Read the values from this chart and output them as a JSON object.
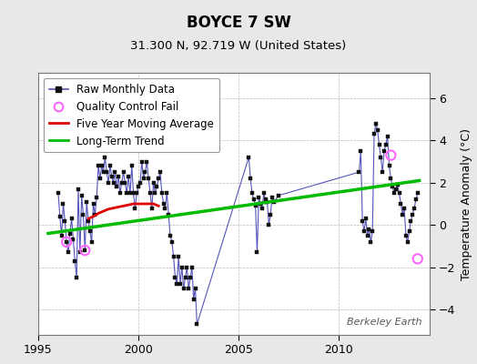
{
  "title": "BOYCE 7 SW",
  "subtitle": "31.300 N, 92.719 W (United States)",
  "ylabel": "Temperature Anomaly (°C)",
  "watermark": "Berkeley Earth",
  "xlim": [
    1995.5,
    2014.5
  ],
  "ylim": [
    -5.2,
    7.2
  ],
  "yticks": [
    -4,
    -2,
    0,
    2,
    4,
    6
  ],
  "xticks": [
    1995,
    2000,
    2005,
    2010
  ],
  "bg_color": "#e8e8e8",
  "plot_bg_color": "#ffffff",
  "raw_line_color": "#5555bb",
  "raw_marker_color": "#111111",
  "qc_fail_color": "#ff66ff",
  "moving_avg_color": "#dd0000",
  "trend_color": "#00bb00",
  "raw_monthly": [
    [
      1996.0,
      1.5
    ],
    [
      1996.083,
      0.4
    ],
    [
      1996.167,
      -0.5
    ],
    [
      1996.25,
      1.0
    ],
    [
      1996.333,
      0.2
    ],
    [
      1996.417,
      -0.8
    ],
    [
      1996.5,
      -1.3
    ],
    [
      1996.583,
      -0.4
    ],
    [
      1996.667,
      0.3
    ],
    [
      1996.75,
      -0.7
    ],
    [
      1996.833,
      -1.7
    ],
    [
      1996.917,
      -2.5
    ],
    [
      1997.0,
      1.7
    ],
    [
      1997.083,
      -1.3
    ],
    [
      1997.167,
      1.4
    ],
    [
      1997.25,
      0.5
    ],
    [
      1997.333,
      -1.2
    ],
    [
      1997.417,
      1.1
    ],
    [
      1997.5,
      0.2
    ],
    [
      1997.583,
      -0.3
    ],
    [
      1997.667,
      -0.8
    ],
    [
      1997.75,
      1.0
    ],
    [
      1997.833,
      0.5
    ],
    [
      1997.917,
      1.3
    ],
    [
      1998.0,
      2.8
    ],
    [
      1998.083,
      2.2
    ],
    [
      1998.167,
      2.8
    ],
    [
      1998.25,
      2.5
    ],
    [
      1998.333,
      3.2
    ],
    [
      1998.417,
      2.5
    ],
    [
      1998.5,
      2.0
    ],
    [
      1998.583,
      2.8
    ],
    [
      1998.667,
      2.3
    ],
    [
      1998.75,
      2.0
    ],
    [
      1998.833,
      2.5
    ],
    [
      1998.917,
      1.8
    ],
    [
      1999.0,
      2.3
    ],
    [
      1999.083,
      1.5
    ],
    [
      1999.167,
      2.0
    ],
    [
      1999.25,
      2.5
    ],
    [
      1999.333,
      2.0
    ],
    [
      1999.417,
      1.5
    ],
    [
      1999.5,
      2.3
    ],
    [
      1999.583,
      1.5
    ],
    [
      1999.667,
      2.8
    ],
    [
      1999.75,
      1.5
    ],
    [
      1999.833,
      0.8
    ],
    [
      1999.917,
      1.5
    ],
    [
      2000.0,
      1.8
    ],
    [
      2000.083,
      2.0
    ],
    [
      2000.167,
      3.0
    ],
    [
      2000.25,
      2.2
    ],
    [
      2000.333,
      2.5
    ],
    [
      2000.417,
      3.0
    ],
    [
      2000.5,
      2.2
    ],
    [
      2000.583,
      1.5
    ],
    [
      2000.667,
      0.8
    ],
    [
      2000.75,
      2.0
    ],
    [
      2000.833,
      1.5
    ],
    [
      2000.917,
      1.8
    ],
    [
      2001.0,
      2.2
    ],
    [
      2001.083,
      2.5
    ],
    [
      2001.167,
      1.5
    ],
    [
      2001.25,
      1.0
    ],
    [
      2001.333,
      0.8
    ],
    [
      2001.417,
      1.5
    ],
    [
      2001.5,
      0.5
    ],
    [
      2001.583,
      -0.5
    ],
    [
      2001.667,
      -0.8
    ],
    [
      2001.75,
      -1.5
    ],
    [
      2001.833,
      -2.5
    ],
    [
      2001.917,
      -2.8
    ],
    [
      2002.0,
      -1.5
    ],
    [
      2002.083,
      -2.8
    ],
    [
      2002.167,
      -2.0
    ],
    [
      2002.25,
      -3.0
    ],
    [
      2002.333,
      -2.5
    ],
    [
      2002.417,
      -2.0
    ],
    [
      2002.5,
      -3.0
    ],
    [
      2002.583,
      -2.5
    ],
    [
      2002.667,
      -2.0
    ],
    [
      2002.75,
      -3.5
    ],
    [
      2002.833,
      -3.0
    ],
    [
      2002.917,
      -4.7
    ],
    [
      2005.5,
      3.2
    ],
    [
      2005.583,
      2.2
    ],
    [
      2005.667,
      1.5
    ],
    [
      2005.75,
      1.2
    ],
    [
      2005.833,
      0.9
    ],
    [
      2005.917,
      -1.3
    ],
    [
      2006.0,
      1.3
    ],
    [
      2006.083,
      1.0
    ],
    [
      2006.167,
      0.8
    ],
    [
      2006.25,
      1.5
    ],
    [
      2006.333,
      1.2
    ],
    [
      2006.417,
      1.1
    ],
    [
      2006.5,
      0.0
    ],
    [
      2006.583,
      0.5
    ],
    [
      2006.667,
      1.3
    ],
    [
      2006.75,
      1.1
    ],
    [
      2007.0,
      1.4
    ],
    [
      2011.0,
      2.5
    ],
    [
      2011.083,
      3.5
    ],
    [
      2011.167,
      0.2
    ],
    [
      2011.25,
      -0.3
    ],
    [
      2011.333,
      0.3
    ],
    [
      2011.417,
      -0.5
    ],
    [
      2011.5,
      -0.2
    ],
    [
      2011.583,
      -0.8
    ],
    [
      2011.667,
      -0.3
    ],
    [
      2011.75,
      4.3
    ],
    [
      2011.833,
      4.8
    ],
    [
      2011.917,
      4.5
    ],
    [
      2012.0,
      3.8
    ],
    [
      2012.083,
      3.2
    ],
    [
      2012.167,
      2.5
    ],
    [
      2012.25,
      3.5
    ],
    [
      2012.333,
      3.8
    ],
    [
      2012.417,
      4.2
    ],
    [
      2012.5,
      2.8
    ],
    [
      2012.583,
      2.2
    ],
    [
      2012.667,
      1.8
    ],
    [
      2012.75,
      1.5
    ],
    [
      2012.833,
      1.7
    ],
    [
      2012.917,
      1.9
    ],
    [
      2013.0,
      1.5
    ],
    [
      2013.083,
      1.0
    ],
    [
      2013.167,
      0.5
    ],
    [
      2013.25,
      0.8
    ],
    [
      2013.333,
      -0.5
    ],
    [
      2013.417,
      -0.8
    ],
    [
      2013.5,
      -0.3
    ],
    [
      2013.583,
      0.2
    ],
    [
      2013.667,
      0.5
    ],
    [
      2013.75,
      0.8
    ],
    [
      2013.833,
      1.2
    ],
    [
      2013.917,
      1.5
    ]
  ],
  "qc_fail_points": [
    [
      1996.417,
      -0.8
    ],
    [
      1997.333,
      -1.2
    ],
    [
      2012.583,
      3.3
    ],
    [
      2013.917,
      -1.6
    ]
  ],
  "moving_avg": [
    [
      1997.5,
      0.3
    ],
    [
      1997.75,
      0.4
    ],
    [
      1998.0,
      0.55
    ],
    [
      1998.25,
      0.65
    ],
    [
      1998.5,
      0.75
    ],
    [
      1998.75,
      0.8
    ],
    [
      1999.0,
      0.85
    ],
    [
      1999.25,
      0.9
    ],
    [
      1999.5,
      0.95
    ],
    [
      1999.75,
      1.0
    ],
    [
      2000.0,
      1.0
    ],
    [
      2000.25,
      1.0
    ],
    [
      2000.5,
      1.0
    ],
    [
      2000.75,
      1.0
    ],
    [
      2001.0,
      0.9
    ]
  ],
  "trend_x": [
    1995.5,
    2014.0
  ],
  "trend_y": [
    -0.4,
    2.1
  ],
  "legend_fontsize": 8.5,
  "title_fontsize": 12,
  "subtitle_fontsize": 9.5
}
